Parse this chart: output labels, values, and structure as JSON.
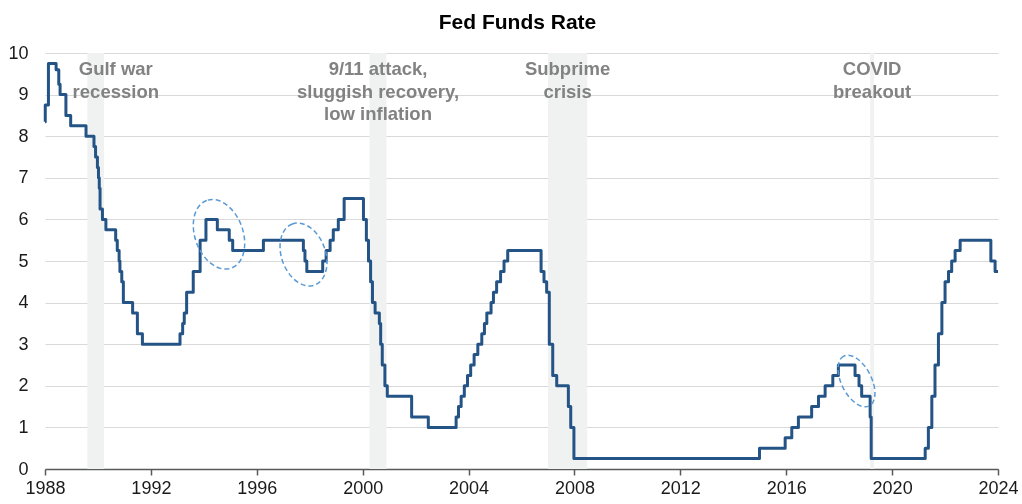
{
  "chart_data": {
    "type": "step",
    "title": "Fed Funds Rate",
    "x": [
      1988.0,
      1988.01,
      1988.13,
      1988.42,
      1988.52,
      1988.57,
      1988.79,
      1988.97,
      1989.55,
      1989.85,
      1989.91,
      1989.98,
      1990.02,
      1990.05,
      1990.08,
      1990.17,
      1990.3,
      1990.67,
      1990.73,
      1990.8,
      1990.83,
      1990.9,
      1990.96,
      1991.31,
      1991.49,
      1991.68,
      1993.1,
      1993.2,
      1993.26,
      1993.35,
      1993.6,
      1993.86,
      1994.08,
      1994.51,
      1994.96,
      1995.09,
      1996.25,
      1997.76,
      1997.82,
      1997.89,
      1998.49,
      1998.62,
      1998.77,
      1998.89,
      1999.08,
      1999.3,
      2000.03,
      2000.14,
      2000.22,
      2000.3,
      2000.37,
      2000.47,
      2000.63,
      2000.68,
      2000.74,
      2000.84,
      2000.93,
      2001.85,
      2002.48,
      2003.53,
      2003.62,
      2003.72,
      2003.84,
      2003.96,
      2004.08,
      2004.21,
      2004.35,
      2004.5,
      2004.6,
      2004.69,
      2004.85,
      2004.94,
      2005.06,
      2005.21,
      2005.34,
      2005.48,
      2006.74,
      2006.85,
      2006.95,
      2007.05,
      2007.18,
      2007.33,
      2007.77,
      2007.86,
      2007.98,
      2014.99,
      2015.96,
      2016.21,
      2016.46,
      2016.96,
      2017.22,
      2017.47,
      2017.76,
      2017.97,
      2018.6,
      2018.75,
      2018.85,
      2019.17,
      2019.21,
      2021.25,
      2021.37,
      2021.5,
      2021.62,
      2021.75,
      2021.88,
      2022.0,
      2022.13,
      2022.25,
      2022.38,
      2022.57,
      2023.73,
      2023.89,
      2024.0
    ],
    "series": [
      {
        "color": "#245486",
        "values": [
          8.35,
          8.75,
          9.75,
          9.6,
          9.25,
          9.0,
          8.5,
          8.25,
          8.0,
          7.75,
          7.5,
          7.25,
          7.0,
          6.75,
          6.25,
          6.0,
          5.75,
          5.5,
          5.25,
          5.0,
          4.75,
          4.5,
          4.0,
          3.75,
          3.25,
          3.0,
          3.25,
          3.5,
          3.75,
          4.25,
          4.75,
          5.5,
          6.0,
          5.75,
          5.5,
          5.25,
          5.5,
          5.25,
          5.0,
          4.75,
          5.0,
          5.25,
          5.5,
          5.75,
          6.0,
          6.5,
          6.0,
          5.5,
          5.0,
          4.5,
          4.0,
          3.75,
          3.5,
          3.0,
          2.5,
          2.0,
          1.75,
          1.25,
          1.0,
          1.25,
          1.5,
          1.75,
          2.0,
          2.25,
          2.5,
          2.75,
          3.0,
          3.25,
          3.5,
          3.75,
          4.0,
          4.25,
          4.5,
          4.75,
          5.0,
          5.25,
          4.75,
          4.5,
          4.25,
          3.0,
          2.25,
          2.0,
          1.5,
          1.0,
          0.25,
          0.5,
          0.75,
          1.0,
          1.25,
          1.5,
          1.75,
          2.0,
          2.25,
          2.5,
          2.25,
          2.0,
          1.75,
          1.25,
          0.25,
          0.5,
          1.0,
          1.75,
          2.5,
          3.25,
          4.0,
          4.5,
          4.75,
          5.0,
          5.25,
          5.5,
          5.0,
          4.75,
          4.75
        ]
      }
    ],
    "xlim": [
      1988,
      2024
    ],
    "xticks": [
      1988,
      1992,
      1996,
      2000,
      2004,
      2008,
      2012,
      2016,
      2020,
      2024
    ],
    "ylim": [
      0,
      10
    ],
    "yticks": [
      0,
      1,
      2,
      3,
      4,
      5,
      6,
      7,
      8,
      9,
      10
    ],
    "grid": "y",
    "bands": [
      {
        "axis": "x",
        "from": 1989.6,
        "to": 1990.23,
        "label": "Gulf war\nrecession",
        "color": "#f0f2f2"
      },
      {
        "axis": "x",
        "from": 2000.26,
        "to": 2000.9,
        "label": "9/11 attack,\nsluggish recovery,\nlow inflation",
        "color": "#f0f2f2"
      },
      {
        "axis": "x",
        "from": 2007.0,
        "to": 2008.48,
        "label": "Subprime\ncrisis",
        "color": "#f0f2f2"
      },
      {
        "axis": "x",
        "from": 2019.17,
        "to": 2019.32,
        "label": "COVID\nbreakout",
        "color": "#f0f2f2"
      }
    ]
  }
}
